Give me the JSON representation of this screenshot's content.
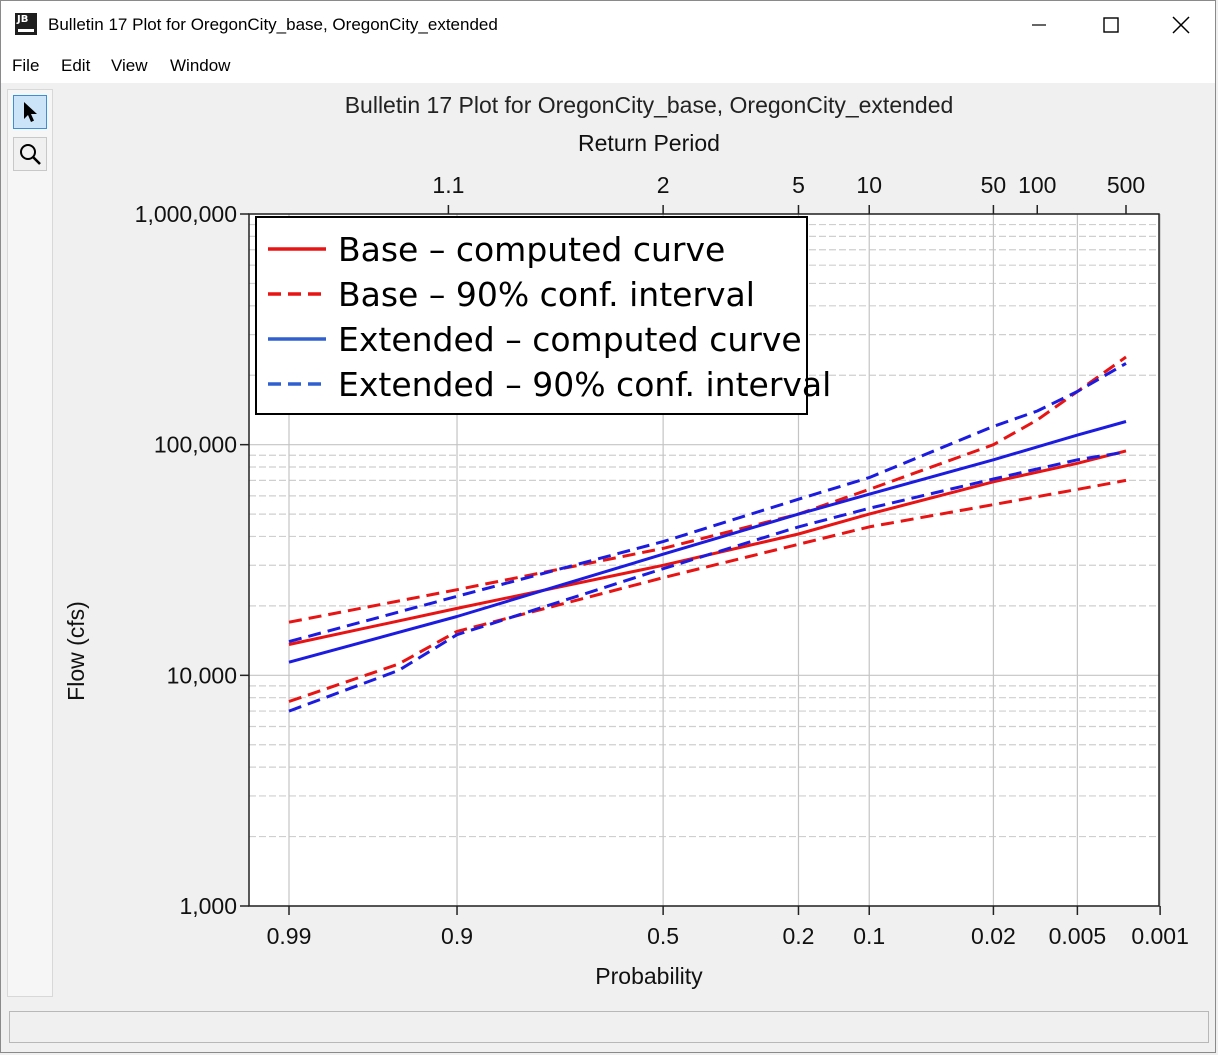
{
  "window": {
    "title": "Bulletin 17 Plot for OregonCity_base, OregonCity_extended",
    "app_icon_text": "JB"
  },
  "menu": {
    "items": [
      "File",
      "Edit",
      "View",
      "Window"
    ]
  },
  "toolbar": {
    "tools": [
      "pointer-icon",
      "zoom-icon"
    ]
  },
  "chart_data": {
    "type": "line",
    "title": "Bulletin 17 Plot for OregonCity_base, OregonCity_extended",
    "top_axis_label": "Return Period",
    "xlabel": "Probability",
    "ylabel": "Flow (cfs)",
    "x_scale": "normal-probability (reversed)",
    "y_scale": "log",
    "ylim": [
      1000,
      1000000
    ],
    "grid": true,
    "legend_position": "top-left",
    "bottom_ticks": [
      "0.99",
      "0.9",
      "0.5",
      "0.2",
      "0.1",
      "0.02",
      "0.005",
      "0.001"
    ],
    "bottom_tick_values": [
      0.99,
      0.9,
      0.5,
      0.2,
      0.1,
      0.02,
      0.005,
      0.001
    ],
    "top_ticks": [
      "1.1",
      "2",
      "5",
      "10",
      "50",
      "100",
      "500"
    ],
    "top_tick_values": [
      1.1,
      2,
      5,
      10,
      50,
      100,
      500
    ],
    "y_ticks": [
      "1,000",
      "10,000",
      "100,000",
      "1,000,000"
    ],
    "y_tick_values": [
      1000,
      10000,
      100000,
      1000000
    ],
    "series": [
      {
        "name": "Base – computed curve",
        "color": "#e81414",
        "dash": "solid",
        "points": [
          [
            0.99,
            13600
          ],
          [
            0.9,
            19500
          ],
          [
            0.5,
            30000
          ],
          [
            0.2,
            41000
          ],
          [
            0.1,
            50000
          ],
          [
            0.02,
            69000
          ],
          [
            0.005,
            83000
          ],
          [
            0.002,
            94000
          ]
        ]
      },
      {
        "name": "Base – 90% conf. interval",
        "color": "#e81414",
        "dash": "dashed",
        "points": [
          [
            0.99,
            17000
          ],
          [
            0.9,
            23500
          ],
          [
            0.5,
            35500
          ],
          [
            0.2,
            50000
          ],
          [
            0.1,
            64000
          ],
          [
            0.02,
            100000
          ],
          [
            0.01,
            128000
          ],
          [
            0.005,
            170000
          ],
          [
            0.002,
            240000
          ]
        ]
      },
      {
        "name": "Base – 90% conf. interval (lower)",
        "color": "#e81414",
        "dash": "dashed",
        "points": [
          [
            0.99,
            7700
          ],
          [
            0.95,
            11200
          ],
          [
            0.9,
            15500
          ],
          [
            0.5,
            26500
          ],
          [
            0.2,
            37000
          ],
          [
            0.1,
            44000
          ],
          [
            0.02,
            55000
          ],
          [
            0.005,
            64000
          ],
          [
            0.002,
            70000
          ]
        ]
      },
      {
        "name": "Extended – computed curve",
        "color": "#1c1ce0",
        "dash": "solid",
        "points": [
          [
            0.99,
            11400
          ],
          [
            0.9,
            18000
          ],
          [
            0.5,
            33500
          ],
          [
            0.2,
            50000
          ],
          [
            0.1,
            61000
          ],
          [
            0.02,
            86000
          ],
          [
            0.005,
            110000
          ],
          [
            0.002,
            126000
          ]
        ]
      },
      {
        "name": "Extended – 90% conf. interval",
        "color": "#1c1ce0",
        "dash": "dashed",
        "points": [
          [
            0.99,
            14000
          ],
          [
            0.9,
            22000
          ],
          [
            0.5,
            38000
          ],
          [
            0.2,
            58000
          ],
          [
            0.1,
            72000
          ],
          [
            0.02,
            120000
          ],
          [
            0.01,
            140000
          ],
          [
            0.005,
            170000
          ],
          [
            0.002,
            225000
          ]
        ]
      },
      {
        "name": "Extended – 90% conf. interval (lower)",
        "color": "#1c1ce0",
        "dash": "dashed",
        "points": [
          [
            0.99,
            7000
          ],
          [
            0.95,
            10500
          ],
          [
            0.9,
            15000
          ],
          [
            0.5,
            29000
          ],
          [
            0.2,
            44000
          ],
          [
            0.1,
            53000
          ],
          [
            0.02,
            71000
          ],
          [
            0.005,
            86000
          ],
          [
            0.002,
            93000
          ]
        ]
      }
    ],
    "legend": [
      {
        "label": "Base – computed curve",
        "color": "#e81414",
        "dash": "solid"
      },
      {
        "label": "Base – 90% conf. interval",
        "color": "#e81414",
        "dash": "dashed"
      },
      {
        "label": "Extended – computed curve",
        "color": "#3060d0",
        "dash": "solid"
      },
      {
        "label": "Extended – 90% conf. interval",
        "color": "#3060d0",
        "dash": "dashed"
      }
    ]
  }
}
